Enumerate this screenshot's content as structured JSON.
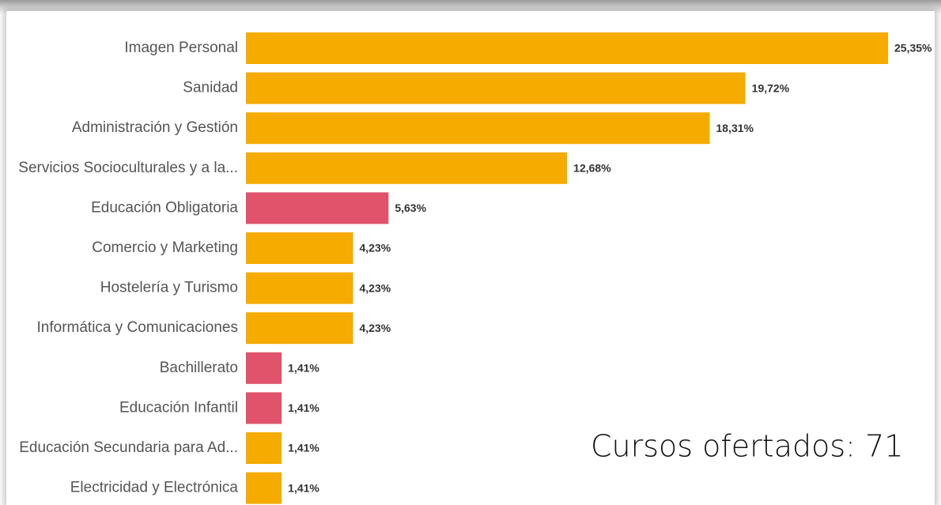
{
  "chart_data": {
    "type": "bar",
    "orientation": "horizontal",
    "categories": [
      "Imagen Personal",
      "Sanidad",
      "Administración y Gestión",
      "Servicios Socioculturales y a la...",
      "Educación Obligatoria",
      "Comercio y Marketing",
      "Hostelería y Turismo",
      "Informática y Comunicaciones",
      "Bachillerato",
      "Educación Infantil",
      "Educación Secundaria para Ad...",
      "Electricidad y Electrónica"
    ],
    "values": [
      25.35,
      19.72,
      18.31,
      12.68,
      5.63,
      4.23,
      4.23,
      4.23,
      1.41,
      1.41,
      1.41,
      1.41
    ],
    "value_labels": [
      "25,35%",
      "19,72%",
      "18,31%",
      "12,68%",
      "5,63%",
      "4,23%",
      "4,23%",
      "4,23%",
      "1,41%",
      "1,41%",
      "1,41%",
      "1,41%"
    ],
    "colors": [
      "#f5ab00",
      "#f5ab00",
      "#f5ab00",
      "#f5ab00",
      "#e0536a",
      "#f5ab00",
      "#f5ab00",
      "#f5ab00",
      "#e0536a",
      "#e0536a",
      "#f5ab00",
      "#f5ab00"
    ],
    "annotation": "Cursos ofertados: 71"
  }
}
